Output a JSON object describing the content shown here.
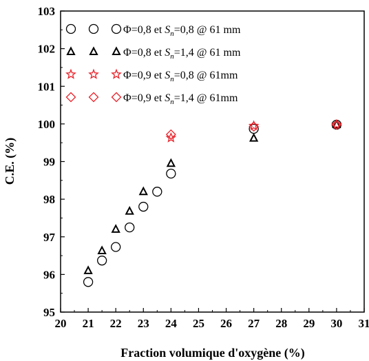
{
  "chart_data": {
    "type": "scatter",
    "xlabel": "Fraction volumique d'oxygène (%)",
    "ylabel": "C.E. (%)",
    "xlim": [
      20,
      31
    ],
    "ylim": [
      95,
      103
    ],
    "xticks": [
      20,
      21,
      22,
      23,
      24,
      25,
      26,
      27,
      28,
      29,
      30,
      31
    ],
    "yticks": [
      95,
      96,
      97,
      98,
      99,
      100,
      101,
      102,
      103
    ],
    "grid": false,
    "legend_position": "top-left",
    "series": [
      {
        "name": "Φ=0,8 et Sn=0,8 @ 61 mm",
        "legend_parts": [
          "Φ=0,8 et ",
          "S",
          "n",
          "=0,8 @ 61 mm"
        ],
        "marker": "circle-icon",
        "color": "#000000",
        "x": [
          21,
          21.5,
          22,
          22.5,
          23,
          23.5,
          24,
          27,
          30
        ],
        "y": [
          95.8,
          96.37,
          96.73,
          97.25,
          97.8,
          98.2,
          98.68,
          99.87,
          99.98
        ]
      },
      {
        "name": "Φ=0,8 et Sn=1,4 @ 61 mm",
        "legend_parts": [
          "Φ=0,8 et ",
          "S",
          "n",
          "=1,4 @ 61 mm"
        ],
        "marker": "triangle-icon",
        "color": "#000000",
        "x": [
          21,
          21.5,
          22,
          22.5,
          23,
          24,
          27,
          30
        ],
        "y": [
          96.1,
          96.63,
          97.2,
          97.68,
          98.2,
          98.95,
          99.62,
          99.98
        ]
      },
      {
        "name": "Φ=0,9 et Sn=0,8 @ 61mm",
        "legend_parts": [
          "Φ=0,9 et ",
          "S",
          "n",
          "=0,8 @ 61mm"
        ],
        "marker": "star-icon",
        "color": "#e8222a",
        "x": [
          24,
          27,
          30
        ],
        "y": [
          99.63,
          99.95,
          99.98
        ]
      },
      {
        "name": "Φ=0,9 et Sn=1,4 @ 61mm",
        "legend_parts": [
          "Φ=0,9 et ",
          "S",
          "n",
          "=1,4 @ 61mm"
        ],
        "marker": "diamond-icon",
        "color": "#e8222a",
        "x": [
          24,
          27,
          30
        ],
        "y": [
          99.72,
          99.93,
          99.98
        ]
      }
    ]
  }
}
